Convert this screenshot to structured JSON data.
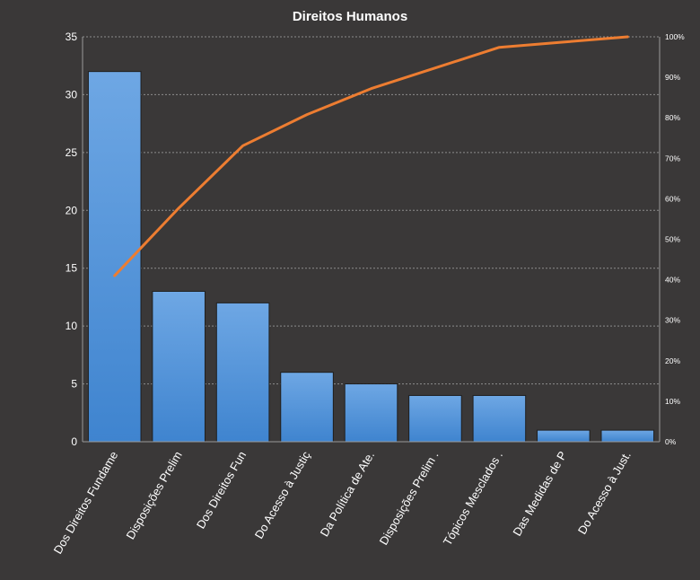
{
  "chart_data": {
    "type": "bar",
    "title": "Direitos  Humanos",
    "categories": [
      "Dos Direitos Fundame",
      "Disposições Prelim",
      "Dos Direitos Fun",
      "Do Acesso à Justiç",
      "Da Política de Ate.",
      "Disposições Prelim .",
      "Tópicos Mesclados .",
      "Das Medidas de P",
      "Do Acesso à Just."
    ],
    "values": [
      32,
      13,
      12,
      6,
      5,
      4,
      4,
      1,
      1
    ],
    "cumulative_percent": [
      41,
      57.7,
      73.1,
      80.8,
      87.2,
      92.3,
      97.4,
      98.7,
      100
    ],
    "ylim": [
      0,
      35
    ],
    "yticks": [
      "0",
      "5",
      "10",
      "15",
      "20",
      "25",
      "30",
      "35"
    ],
    "y2lim": [
      0,
      100
    ],
    "y2ticks": [
      "0%",
      "10%",
      "20%",
      "30%",
      "40%",
      "50%",
      "60%",
      "70%",
      "80%",
      "90%",
      "100%"
    ],
    "grid": true,
    "colors": {
      "background": "#3a3838",
      "bar_top": "#6ea7e4",
      "bar_bottom": "#3f84cf",
      "bar_stroke": "#1f1f1f",
      "line": "#ed7d31",
      "text": "#ffffff"
    }
  }
}
